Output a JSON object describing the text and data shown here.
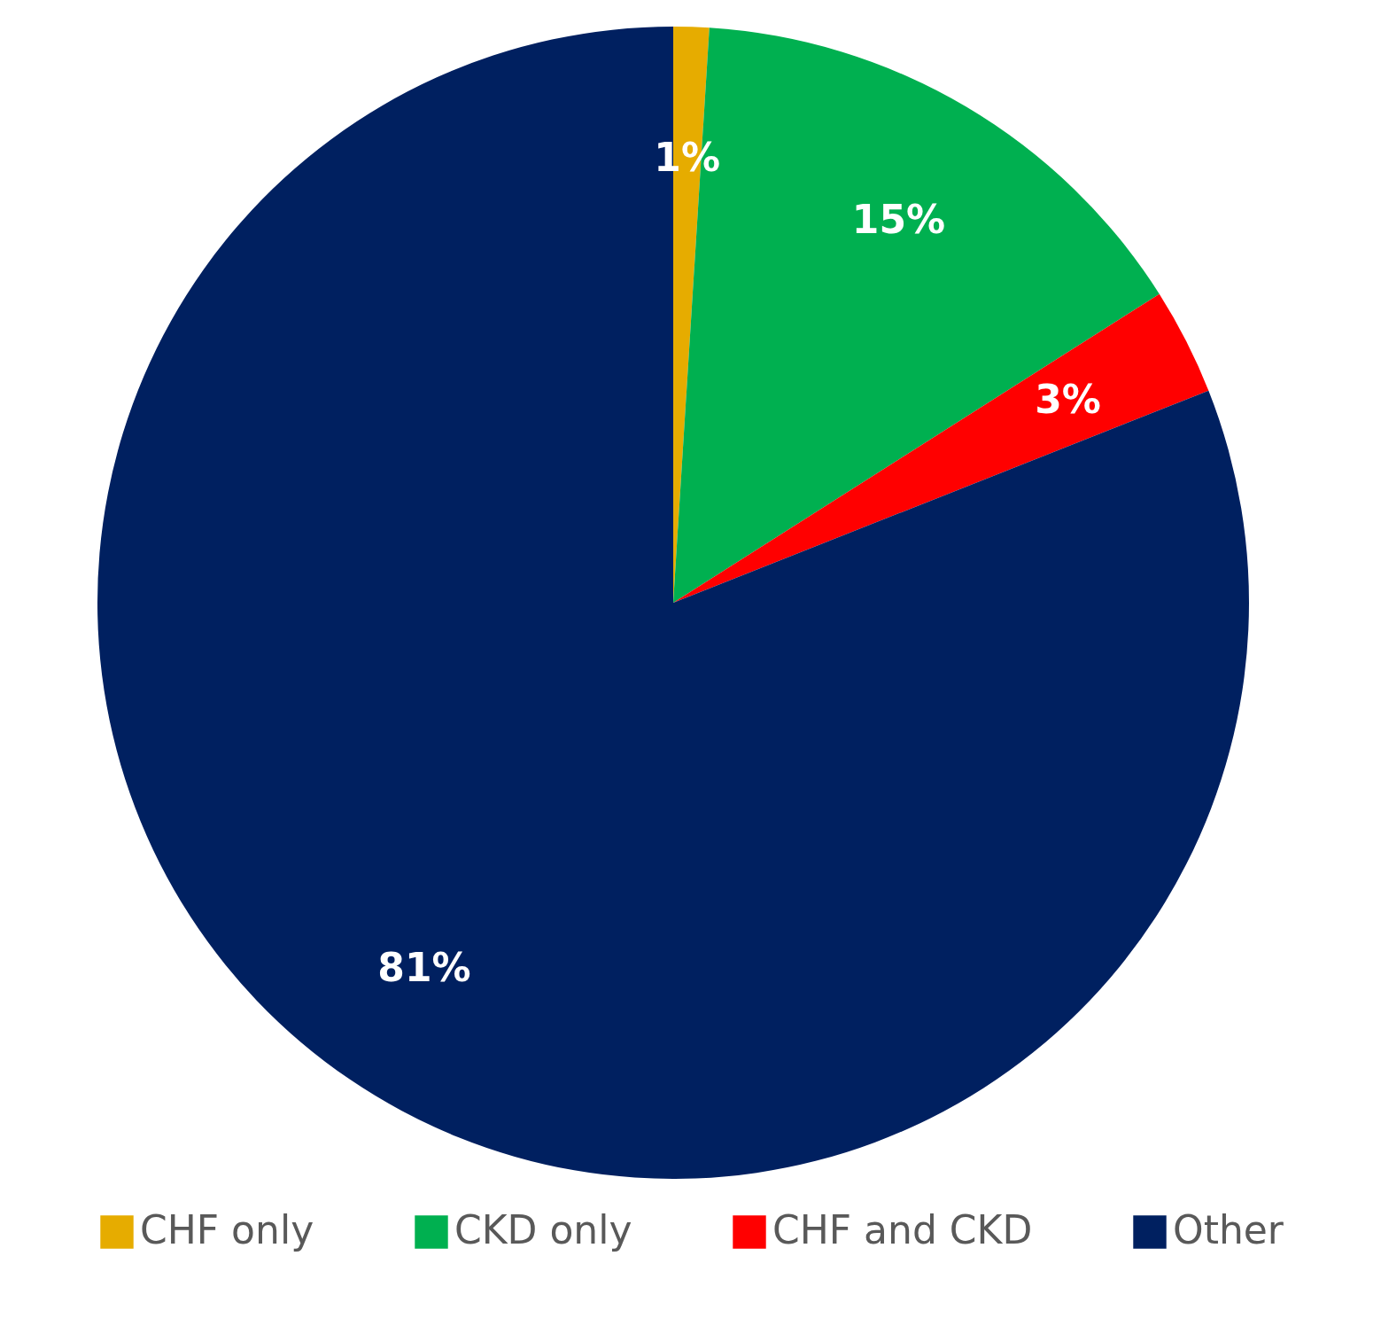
{
  "chart_data": {
    "type": "pie",
    "categories": [
      "CHF only",
      "CKD only",
      "CHF and CKD",
      "Other"
    ],
    "values": [
      1,
      15,
      3,
      81
    ],
    "colors": [
      "#e6ac00",
      "#00b050",
      "#ff0000",
      "#002060"
    ],
    "value_labels": [
      "1%",
      "15%",
      "3%",
      "81%"
    ],
    "legend": "bottom"
  }
}
